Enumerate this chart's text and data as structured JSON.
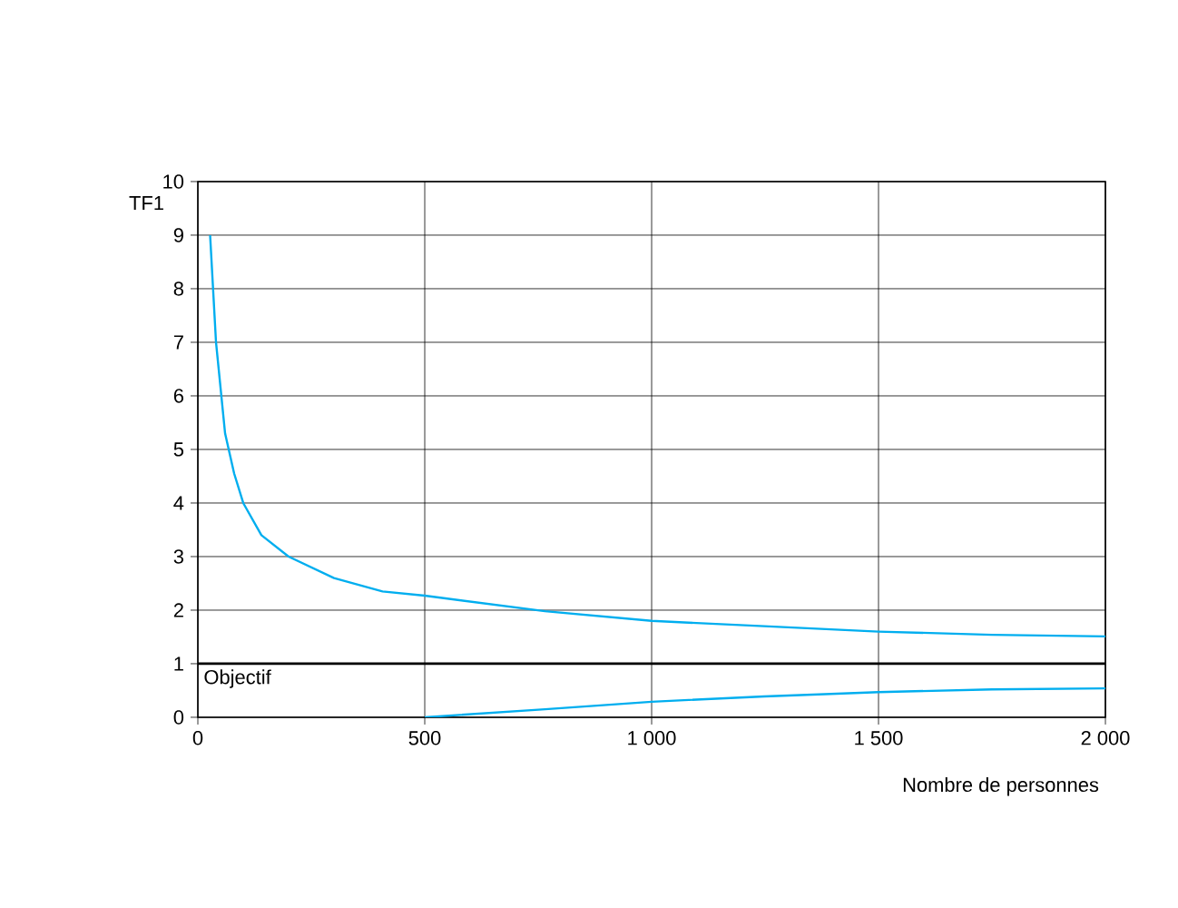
{
  "chart_data": {
    "type": "line",
    "xlabel": "Nombre de personnes",
    "ylabel": "TF1",
    "xlim": [
      0,
      2000
    ],
    "ylim": [
      0,
      10
    ],
    "xticks": [
      0,
      500,
      {
        "value": 1000,
        "label": "1 000"
      },
      {
        "value": 1500,
        "label": "1 500"
      },
      {
        "value": 2000,
        "label": "2 000"
      }
    ],
    "yticks": [
      0,
      1,
      2,
      3,
      4,
      5,
      6,
      7,
      8,
      9,
      10
    ],
    "grid": true,
    "marker": "none",
    "line_style": "solid",
    "ref_lines": [
      {
        "axis": "y",
        "value": 1,
        "label": "Objectif",
        "color": "#000000"
      }
    ],
    "series": [
      {
        "color": "#00aeef",
        "x": [
          27,
          40,
          60,
          80,
          100,
          140,
          200,
          300,
          407,
          500,
          765,
          1000,
          1248,
          1500,
          1750,
          2000
        ],
        "values": [
          9,
          7.0,
          5.3,
          4.55,
          4.0,
          3.4,
          3.0,
          2.6,
          2.35,
          2.27,
          1.98,
          1.8,
          1.7,
          1.6,
          1.54,
          1.51
        ]
      },
      {
        "color": "#00aeef",
        "x": [
          500,
          765,
          1000,
          1248,
          1500,
          1750,
          2000
        ],
        "values": [
          0,
          0.15,
          0.29,
          0.39,
          0.47,
          0.52,
          0.54
        ]
      }
    ]
  }
}
